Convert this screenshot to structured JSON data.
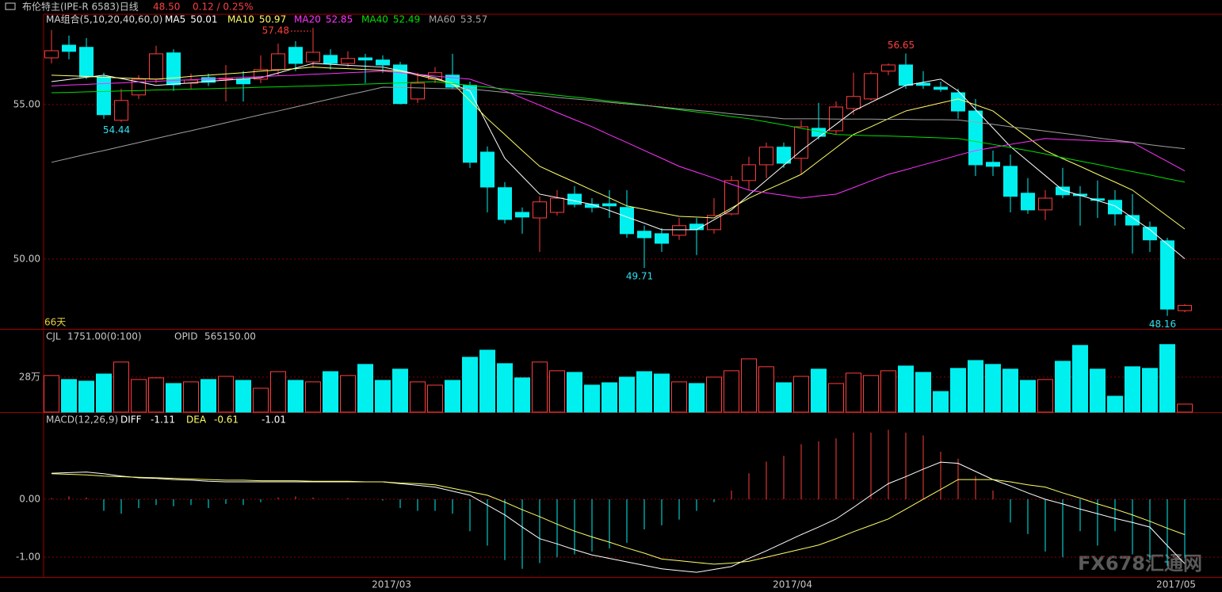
{
  "header": {
    "title": "布伦特主(IPE-R 6583)日线",
    "price": "48.50",
    "change": "0.12 / 0.25%",
    "watermark": "FX678汇通网"
  },
  "chart_data": [
    {
      "type": "candlestick",
      "legend_title": "MA组合(5,10,20,40,60,0)",
      "day_count": "66天",
      "categories": [
        null,
        null,
        null,
        null,
        null,
        null,
        null,
        null,
        null,
        null,
        null,
        null,
        null,
        null,
        null,
        null,
        null,
        null,
        null,
        null,
        "2017/03",
        null,
        null,
        null,
        null,
        null,
        null,
        null,
        null,
        null,
        null,
        null,
        null,
        null,
        null,
        null,
        null,
        null,
        null,
        null,
        null,
        null,
        null,
        "2017/04",
        null,
        null,
        null,
        null,
        null,
        null,
        null,
        null,
        null,
        null,
        null,
        null,
        null,
        null,
        null,
        null,
        null,
        null,
        null,
        null,
        null,
        "2017/05"
      ],
      "open": [
        56.51,
        56.92,
        56.85,
        55.9,
        54.49,
        55.31,
        55.82,
        56.67,
        55.69,
        55.87,
        55.82,
        55.82,
        55.82,
        56.13,
        56.85,
        56.38,
        56.59,
        56.33,
        56.51,
        56.44,
        56.28,
        55.18,
        55.82,
        55.95,
        55.62,
        53.46,
        52.31,
        51.51,
        51.33,
        51.51,
        52.1,
        51.77,
        51.79,
        51.67,
        50.9,
        50.82,
        50.77,
        51.13,
        50.95,
        51.46,
        52.54,
        53.05,
        53.62,
        53.26,
        54.23,
        54.15,
        54.87,
        55.18,
        56.08,
        56.28,
        55.69,
        55.56,
        55.38,
        54.79,
        53.13,
        53.0,
        52.13,
        51.59,
        52.33,
        52.1,
        51.95,
        51.9,
        51.41,
        51.03,
        50.59,
        48.33
      ],
      "high": [
        57.41,
        57.23,
        57.15,
        56.03,
        55.51,
        55.95,
        56.9,
        56.79,
        56.0,
        56.0,
        56.28,
        56.08,
        56.59,
        56.97,
        57.05,
        57.48,
        56.79,
        56.72,
        56.64,
        56.59,
        56.38,
        56.03,
        56.21,
        56.64,
        55.74,
        53.64,
        52.49,
        51.67,
        52.03,
        52.23,
        52.36,
        51.97,
        52.23,
        52.23,
        51.08,
        51.0,
        51.33,
        51.33,
        51.97,
        52.69,
        53.31,
        53.77,
        53.77,
        54.49,
        55.05,
        55.1,
        56.03,
        56.08,
        56.33,
        56.65,
        56.08,
        55.74,
        55.51,
        55.18,
        53.51,
        53.38,
        52.62,
        52.23,
        52.95,
        52.36,
        52.54,
        52.23,
        52.1,
        51.21,
        50.69,
        48.54
      ],
      "low": [
        56.33,
        56.46,
        55.82,
        54.54,
        54.44,
        55.18,
        55.69,
        55.44,
        55.5,
        55.6,
        55.1,
        55.1,
        55.69,
        55.95,
        56.08,
        56.21,
        56.13,
        56.21,
        55.69,
        56.03,
        55.0,
        55.05,
        55.69,
        55.51,
        52.95,
        51.51,
        51.15,
        50.82,
        50.23,
        51.41,
        51.67,
        51.51,
        51.33,
        50.69,
        49.71,
        50.23,
        50.62,
        50.13,
        50.82,
        51.41,
        52.23,
        52.62,
        52.95,
        52.74,
        53.87,
        54.03,
        54.67,
        55.13,
        55.95,
        55.51,
        55.51,
        55.41,
        54.54,
        52.69,
        52.69,
        51.51,
        51.46,
        51.26,
        51.97,
        51.08,
        51.33,
        51.08,
        50.18,
        50.23,
        48.16,
        48.28
      ],
      "close": [
        56.74,
        56.72,
        55.9,
        54.67,
        55.13,
        55.82,
        56.64,
        55.64,
        55.79,
        55.72,
        55.85,
        55.67,
        56.13,
        56.64,
        56.33,
        56.69,
        56.33,
        56.49,
        56.44,
        56.28,
        55.03,
        55.69,
        56.03,
        55.56,
        53.13,
        52.33,
        51.28,
        51.36,
        51.85,
        51.97,
        51.77,
        51.67,
        51.72,
        50.82,
        50.69,
        50.51,
        51.08,
        50.95,
        51.41,
        52.54,
        53.05,
        53.62,
        53.1,
        54.28,
        53.97,
        54.92,
        55.26,
        56.0,
        56.28,
        55.62,
        55.62,
        55.49,
        54.79,
        53.05,
        53.0,
        52.03,
        51.59,
        51.97,
        52.08,
        52.05,
        51.9,
        51.46,
        51.1,
        50.62,
        48.38,
        48.5
      ],
      "up_color": "#ff3c3c",
      "down_color": "#00f0f0",
      "lines": [
        {
          "name": "MA5",
          "color": "#ffffff",
          "values": [
            55.74,
            55.81,
            55.88,
            55.95,
            55.84,
            55.73,
            55.62,
            55.66,
            55.7,
            55.75,
            55.79,
            55.83,
            55.87,
            56.02,
            56.18,
            56.33,
            56.3,
            56.27,
            56.24,
            56.21,
            56.1,
            55.98,
            55.87,
            55.66,
            55.44,
            54.35,
            53.26,
            52.68,
            52.1,
            51.99,
            51.88,
            51.77,
            51.57,
            51.36,
            51.16,
            50.95,
            50.95,
            50.95,
            51.27,
            51.59,
            52.07,
            52.55,
            53.03,
            53.51,
            53.94,
            54.36,
            54.79,
            55.07,
            55.34,
            55.62,
            55.72,
            55.82,
            55.44,
            54.84,
            54.24,
            53.64,
            53.17,
            52.7,
            52.23,
            52.06,
            51.89,
            51.72,
            51.34,
            50.95,
            50.48,
            50.01
          ]
        },
        {
          "name": "MA10",
          "color": "#ffff66",
          "values": [
            55.95,
            55.93,
            55.91,
            55.88,
            55.86,
            55.84,
            55.82,
            55.86,
            55.91,
            55.95,
            55.99,
            56.03,
            56.08,
            56.12,
            56.16,
            56.21,
            56.18,
            56.16,
            56.13,
            56.11,
            56.08,
            55.95,
            55.82,
            55.69,
            55.12,
            54.54,
            54.03,
            53.51,
            53.0,
            52.74,
            52.49,
            52.23,
            51.98,
            51.72,
            51.61,
            51.49,
            51.38,
            51.36,
            51.33,
            51.65,
            51.97,
            52.23,
            52.48,
            52.74,
            53.17,
            53.6,
            54.03,
            54.28,
            54.54,
            54.79,
            54.92,
            55.05,
            55.18,
            54.99,
            54.79,
            54.36,
            53.94,
            53.51,
            53.25,
            53.0,
            52.74,
            52.49,
            52.23,
            51.81,
            51.39,
            50.97
          ]
        },
        {
          "name": "MA20",
          "color": "#ff33ff",
          "values": [
            55.6,
            55.63,
            55.65,
            55.68,
            55.7,
            55.73,
            55.75,
            55.78,
            55.8,
            55.83,
            55.85,
            55.88,
            55.9,
            55.93,
            55.95,
            55.98,
            56.0,
            56.03,
            56.05,
            56.08,
            56.03,
            55.98,
            55.92,
            55.87,
            55.82,
            55.63,
            55.44,
            55.21,
            54.98,
            54.74,
            54.51,
            54.28,
            54.02,
            53.77,
            53.51,
            53.26,
            53.0,
            52.81,
            52.62,
            52.42,
            52.23,
            52.14,
            52.06,
            51.97,
            52.04,
            52.1,
            52.31,
            52.53,
            52.74,
            52.89,
            53.05,
            53.2,
            53.36,
            53.51,
            53.61,
            53.71,
            53.8,
            53.9,
            53.87,
            53.85,
            53.82,
            53.8,
            53.77,
            53.46,
            53.16,
            52.85
          ]
        },
        {
          "name": "MA40",
          "color": "#00e000",
          "values": [
            55.38,
            55.39,
            55.41,
            55.42,
            55.44,
            55.45,
            55.47,
            55.48,
            55.5,
            55.51,
            55.53,
            55.54,
            55.56,
            55.57,
            55.59,
            55.6,
            55.62,
            55.64,
            55.66,
            55.68,
            55.7,
            55.72,
            55.74,
            55.68,
            55.62,
            55.56,
            55.5,
            55.43,
            55.37,
            55.3,
            55.24,
            55.18,
            55.11,
            55.05,
            54.98,
            54.9,
            54.83,
            54.76,
            54.69,
            54.61,
            54.54,
            54.44,
            54.34,
            54.23,
            54.13,
            54.03,
            54.01,
            53.99,
            53.98,
            53.96,
            53.94,
            53.92,
            53.9,
            53.8,
            53.71,
            53.61,
            53.51,
            53.4,
            53.28,
            53.17,
            53.06,
            52.94,
            52.83,
            52.72,
            52.6,
            52.49
          ]
        },
        {
          "name": "MA60",
          "color": "#a0a0a0",
          "values": [
            53.13,
            53.26,
            53.39,
            53.51,
            53.64,
            53.77,
            53.9,
            54.03,
            54.15,
            54.28,
            54.41,
            54.54,
            54.67,
            54.79,
            54.92,
            55.05,
            55.18,
            55.31,
            55.43,
            55.56,
            55.55,
            55.54,
            55.52,
            55.51,
            55.5,
            55.45,
            55.39,
            55.34,
            55.29,
            55.23,
            55.18,
            55.13,
            55.07,
            55.02,
            54.97,
            54.92,
            54.86,
            54.81,
            54.76,
            54.7,
            54.65,
            54.6,
            54.54,
            54.54,
            54.54,
            54.53,
            54.53,
            54.53,
            54.52,
            54.52,
            54.51,
            54.51,
            54.5,
            54.43,
            54.36,
            54.28,
            54.21,
            54.14,
            54.07,
            54.0,
            53.92,
            53.85,
            53.78,
            53.7,
            53.63,
            53.57
          ]
        }
      ],
      "ylim": [
        47.74,
        57.92
      ],
      "yticks": [
        {
          "value": 55,
          "label": "55.00"
        },
        {
          "value": 50,
          "label": "50.00"
        }
      ],
      "grid": true
    },
    {
      "type": "bar",
      "name": "CJL",
      "params": "1751.00(0:100)",
      "oi_name": "OPID",
      "oi_value": "565150.00",
      "values": [
        29.3,
        26.1,
        24.8,
        30.5,
        40.1,
        26.1,
        27.4,
        22.9,
        24.2,
        26.1,
        28.6,
        25.4,
        19.1,
        32.4,
        25.4,
        24.2,
        32.4,
        29.3,
        38.2,
        25.4,
        34.4,
        24.2,
        21.6,
        25.4,
        43.9,
        49.6,
        38.8,
        27.4,
        40.1,
        33.1,
        31.8,
        21.6,
        23.5,
        28.0,
        32.4,
        30.5,
        24.2,
        22.9,
        28.0,
        33.1,
        42.6,
        36.3,
        23.5,
        28.6,
        34.4,
        22.9,
        31.2,
        29.3,
        33.1,
        36.9,
        31.8,
        16.5,
        35.0,
        41.3,
        38.2,
        34.4,
        25.4,
        26.1,
        40.7,
        53.4,
        34.4,
        12.7,
        36.3,
        35.0,
        54.1,
        6.4
      ],
      "ylim": [
        0,
        66
      ],
      "yticks": [
        {
          "value": 28,
          "label": "28万"
        }
      ],
      "grid": true
    },
    {
      "type": "macd",
      "name": "MACD(12,26,9)",
      "series": [
        {
          "name": "DIFF",
          "color": "#ffffff",
          "values": [
            0.45,
            0.46,
            0.47,
            0.44,
            0.4,
            0.37,
            0.36,
            0.34,
            0.33,
            0.31,
            0.3,
            0.3,
            0.3,
            0.3,
            0.3,
            0.3,
            0.3,
            0.3,
            0.3,
            0.3,
            0.27,
            0.24,
            0.21,
            0.14,
            0.07,
            -0.1,
            -0.27,
            -0.48,
            -0.68,
            -0.77,
            -0.87,
            -0.96,
            -1.02,
            -1.08,
            -1.14,
            -1.2,
            -1.23,
            -1.26,
            -1.21,
            -1.16,
            -1.02,
            -0.89,
            -0.75,
            -0.61,
            -0.48,
            -0.34,
            -0.14,
            0.07,
            0.27,
            0.39,
            0.52,
            0.64,
            0.62,
            0.48,
            0.34,
            0.23,
            0.11,
            0.0,
            -0.08,
            -0.17,
            -0.25,
            -0.33,
            -0.4,
            -0.48,
            -0.8,
            -1.11
          ]
        },
        {
          "name": "DEA",
          "color": "#ffff66",
          "values": [
            0.44,
            0.43,
            0.42,
            0.4,
            0.39,
            0.38,
            0.37,
            0.36,
            0.35,
            0.34,
            0.33,
            0.33,
            0.32,
            0.32,
            0.32,
            0.31,
            0.31,
            0.31,
            0.3,
            0.3,
            0.28,
            0.27,
            0.25,
            0.19,
            0.13,
            0.07,
            -0.05,
            -0.18,
            -0.3,
            -0.43,
            -0.55,
            -0.65,
            -0.74,
            -0.84,
            -0.93,
            -1.03,
            -1.06,
            -1.09,
            -1.12,
            -1.1,
            -1.07,
            -1.0,
            -0.93,
            -0.86,
            -0.79,
            -0.68,
            -0.56,
            -0.45,
            -0.34,
            -0.17,
            0.0,
            0.17,
            0.34,
            0.34,
            0.34,
            0.3,
            0.25,
            0.21,
            0.11,
            0.02,
            -0.08,
            -0.17,
            -0.27,
            -0.38,
            -0.5,
            -0.61
          ]
        }
      ],
      "histogram": {
        "up_color": "#ff3c3c",
        "down_color": "#00f0f0",
        "values": [
          0.02,
          0.05,
          0.03,
          -0.2,
          -0.25,
          -0.15,
          -0.1,
          -0.12,
          -0.1,
          -0.15,
          -0.08,
          -0.1,
          -0.05,
          0.03,
          0.05,
          0.03,
          0.0,
          0.02,
          0.01,
          -0.02,
          -0.15,
          -0.2,
          -0.2,
          -0.25,
          -0.55,
          -0.8,
          -1.05,
          -1.2,
          -1.1,
          -1.0,
          -0.95,
          -0.9,
          -0.85,
          -0.75,
          -0.52,
          -0.45,
          -0.35,
          -0.2,
          -0.05,
          0.15,
          0.45,
          0.65,
          0.75,
          0.95,
          1.0,
          1.05,
          1.15,
          1.15,
          1.2,
          1.15,
          1.1,
          0.82,
          0.7,
          0.4,
          0.15,
          -0.4,
          -0.6,
          -0.9,
          -1.0,
          -0.55,
          -0.8,
          -0.55,
          -0.95,
          -1.05,
          -1.15,
          -1.01
        ]
      },
      "ylim": [
        -1.34,
        1.49
      ],
      "yticks": [
        {
          "value": 0,
          "label": "0.00"
        },
        {
          "value": -1,
          "label": "-1.00"
        }
      ],
      "grid": true
    }
  ]
}
